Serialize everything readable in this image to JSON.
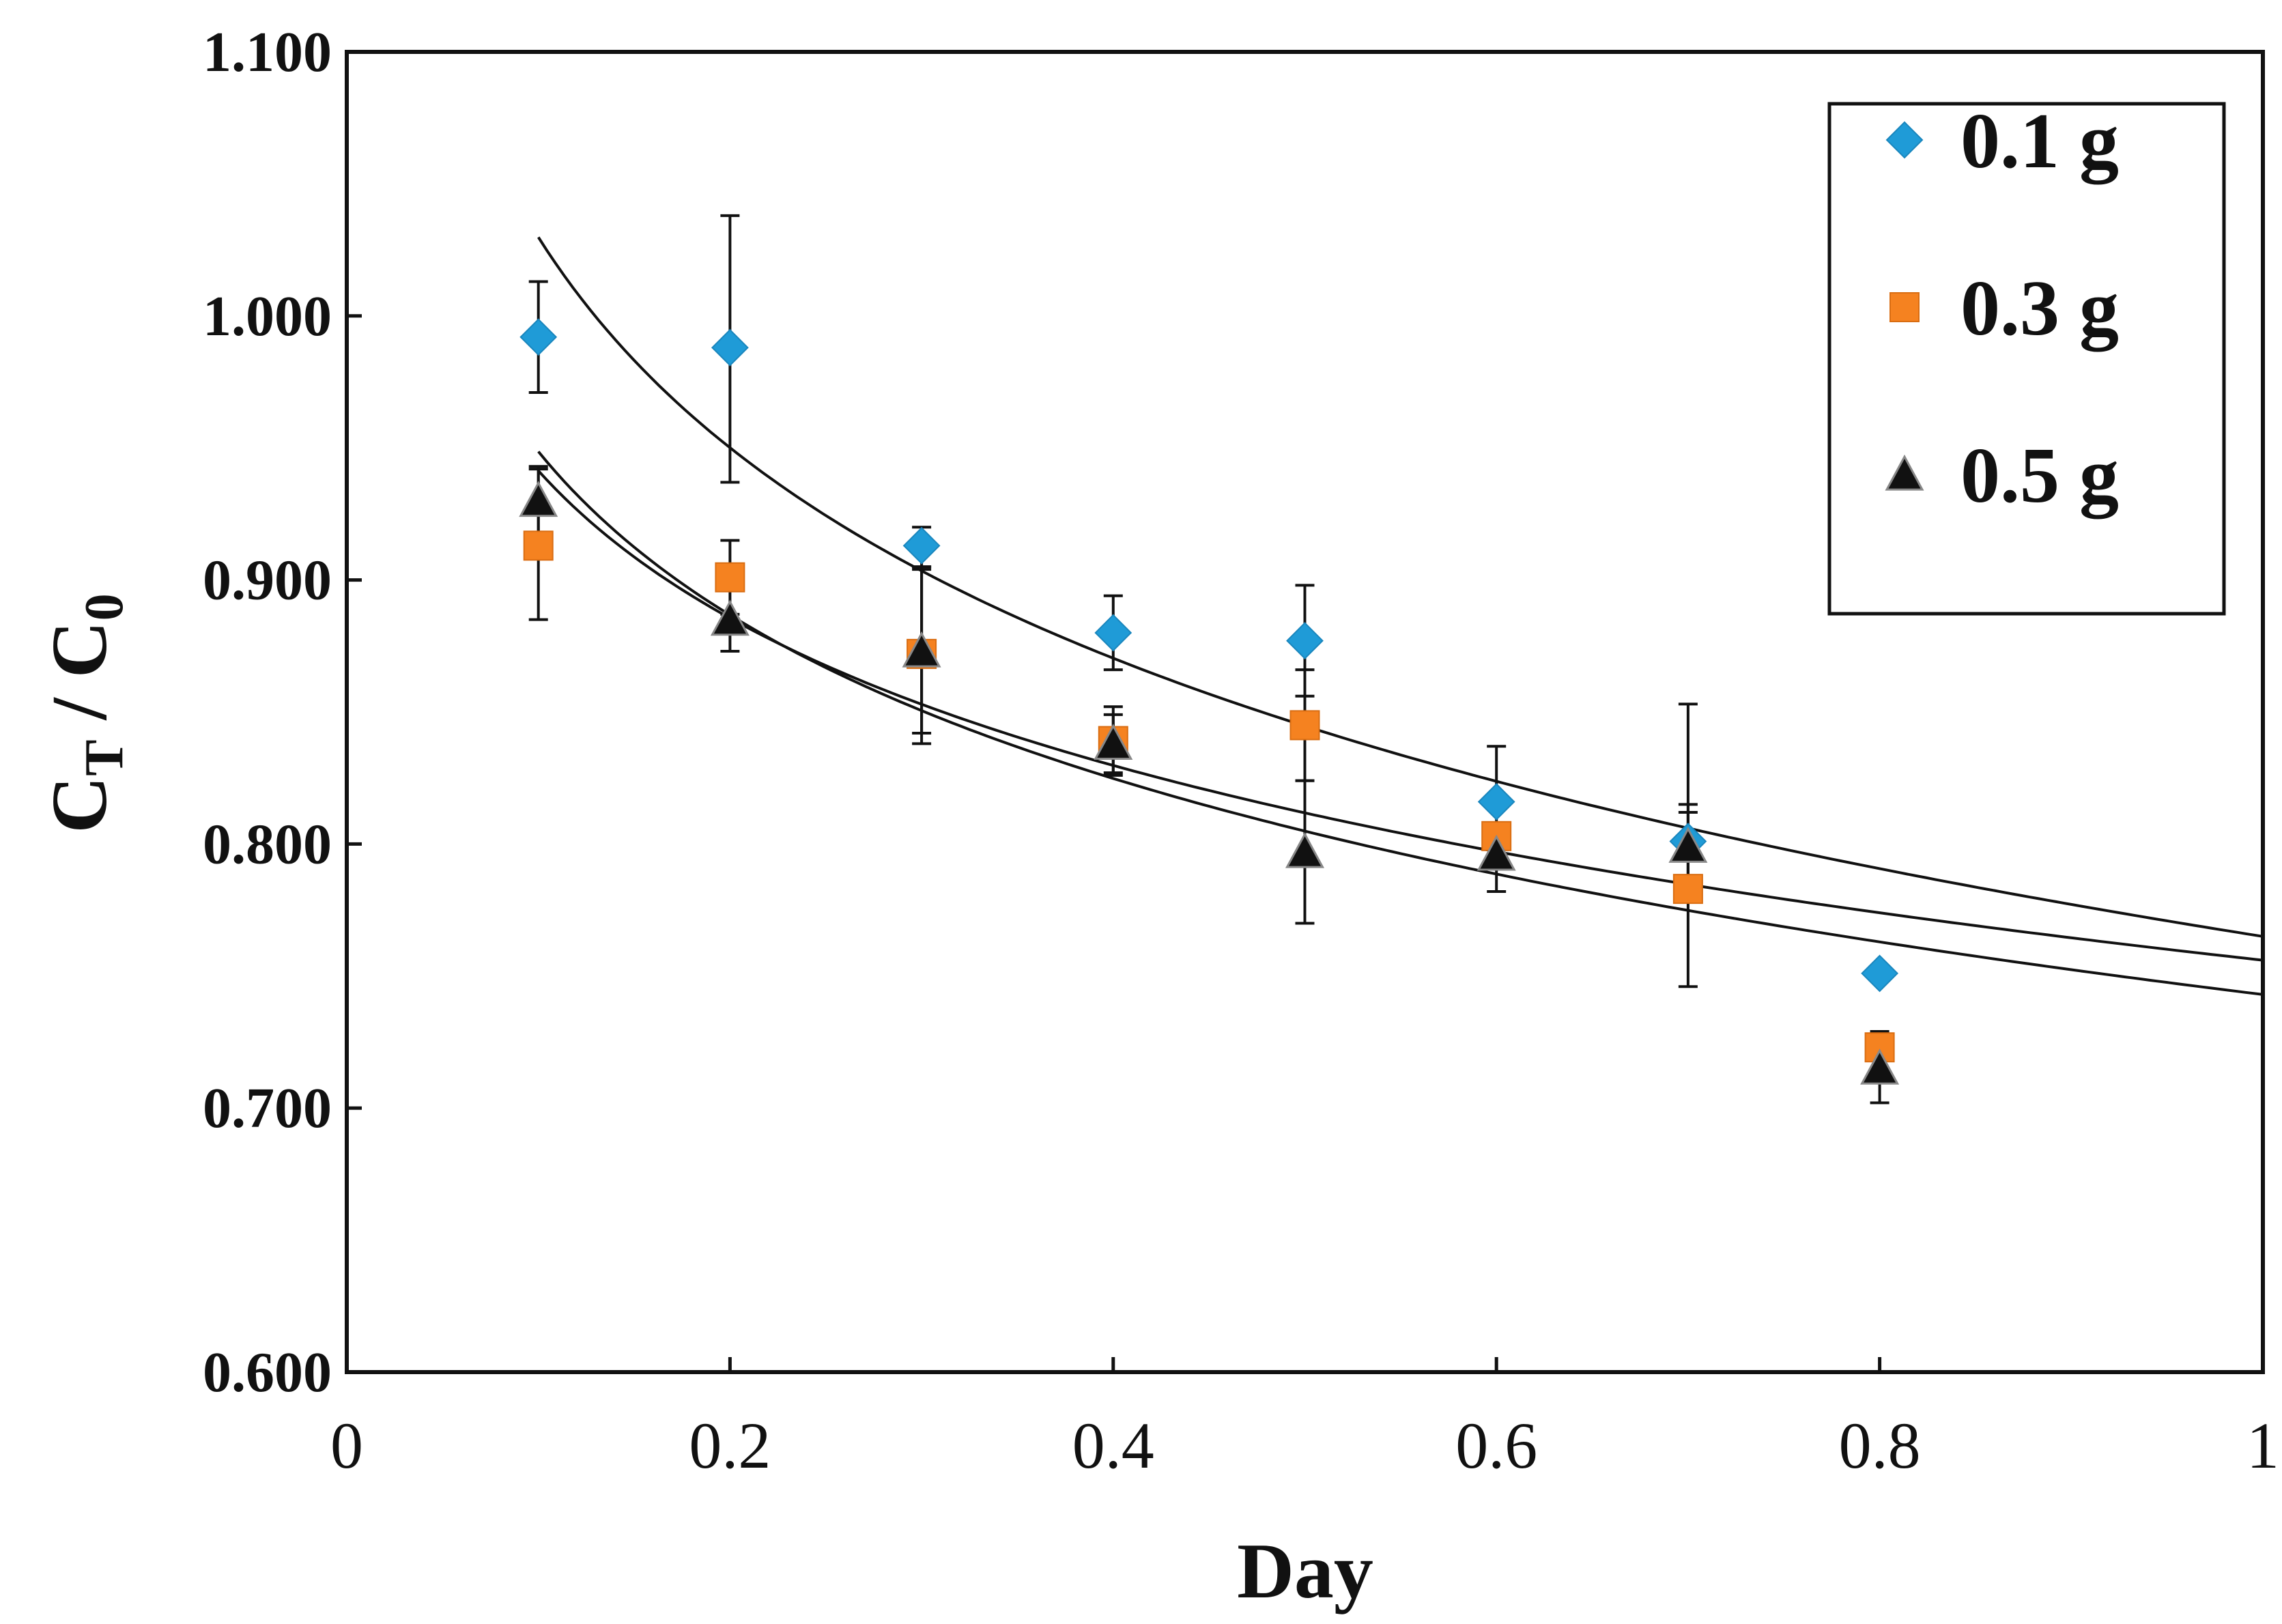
{
  "chart_data": {
    "type": "scatter",
    "title": "",
    "xlabel": "Day",
    "ylabel": {
      "base": "C",
      "sub1": "T",
      "separator": " / ",
      "base2": "C",
      "sub2": "0"
    },
    "xlim": [
      0,
      1
    ],
    "ylim": [
      0.6,
      1.1
    ],
    "x_ticks": [
      0,
      0.2,
      0.4,
      0.6,
      0.8,
      1
    ],
    "x_tick_labels": [
      "0",
      "0.2",
      "0.4",
      "0.6",
      "0.8",
      "1"
    ],
    "y_ticks": [
      0.6,
      0.7,
      0.8,
      0.9,
      1.0,
      1.1
    ],
    "y_tick_labels": [
      "0.600",
      "0.700",
      "0.800",
      "0.900",
      "1.000",
      "1.100"
    ],
    "grid": false,
    "legend_position": "top-right",
    "series": [
      {
        "name": "0.1 g",
        "marker": "diamond",
        "color": "#1f9bd7",
        "x": [
          0.1,
          0.2,
          0.3,
          0.4,
          0.5,
          0.6,
          0.7,
          0.8
        ],
        "y": [
          0.992,
          0.988,
          0.913,
          0.88,
          0.877,
          0.816,
          0.801,
          0.751
        ],
        "err_upper": [
          1.013,
          1.038,
          0.92,
          0.894,
          0.898,
          0.837,
          0.815,
          0.751
        ],
        "err_lower": [
          0.971,
          0.937,
          0.905,
          0.866,
          0.856,
          0.795,
          0.787,
          0.751
        ],
        "fit": {
          "a": 0.765,
          "b": -0.115
        }
      },
      {
        "name": "0.3 g",
        "marker": "square",
        "color": "#f58220",
        "x": [
          0.1,
          0.2,
          0.3,
          0.4,
          0.5,
          0.6,
          0.7,
          0.8
        ],
        "y": [
          0.913,
          0.901,
          0.872,
          0.839,
          0.845,
          0.803,
          0.783,
          0.723
        ],
        "err_upper": [
          0.942,
          0.915,
          0.905,
          0.852,
          0.866,
          0.803,
          0.853,
          0.723
        ],
        "err_lower": [
          0.885,
          0.887,
          0.838,
          0.826,
          0.824,
          0.803,
          0.746,
          0.723
        ],
        "fit": {
          "a": 0.756,
          "b": -0.0805
        }
      },
      {
        "name": "0.5 g",
        "marker": "triangle",
        "color": "#111111",
        "x": [
          0.1,
          0.2,
          0.3,
          0.4,
          0.5,
          0.6,
          0.7,
          0.8
        ],
        "y": [
          0.93,
          0.885,
          0.873,
          0.838,
          0.797,
          0.796,
          0.799,
          0.715
        ],
        "err_upper": [
          0.943,
          0.885,
          0.904,
          0.849,
          0.824,
          0.808,
          0.812,
          0.729
        ],
        "err_lower": [
          0.917,
          0.873,
          0.842,
          0.827,
          0.77,
          0.782,
          0.786,
          0.702
        ],
        "fit": {
          "a": 0.743,
          "b": -0.0893
        }
      }
    ]
  }
}
